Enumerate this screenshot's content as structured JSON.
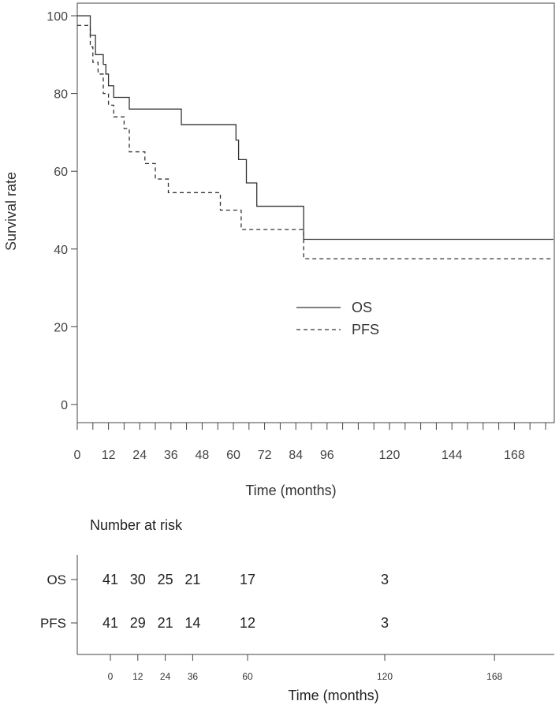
{
  "chart_data": {
    "type": "line",
    "title": "",
    "xlabel": "Time (months)",
    "ylabel": "Survival rate",
    "xlim": [
      0,
      184
    ],
    "ylim": [
      0,
      100
    ],
    "x_ticks": [
      0,
      6,
      12,
      18,
      24,
      30,
      36,
      42,
      48,
      54,
      60,
      66,
      72,
      78,
      84,
      90,
      96,
      102,
      108,
      114,
      120,
      126,
      132,
      138,
      144,
      150,
      156,
      162,
      168,
      174,
      180
    ],
    "x_tick_labels": [
      {
        "value": 0,
        "label": "0"
      },
      {
        "value": 12,
        "label": "12"
      },
      {
        "value": 24,
        "label": "24"
      },
      {
        "value": 36,
        "label": "36"
      },
      {
        "value": 48,
        "label": "48"
      },
      {
        "value": 60,
        "label": "60"
      },
      {
        "value": 72,
        "label": "72"
      },
      {
        "value": 84,
        "label": "84"
      },
      {
        "value": 96,
        "label": "96"
      },
      {
        "value": 120,
        "label": "120"
      },
      {
        "value": 144,
        "label": "144"
      },
      {
        "value": 168,
        "label": "168"
      }
    ],
    "y_ticks": [
      {
        "value": 0,
        "label": "0"
      },
      {
        "value": 20,
        "label": "20"
      },
      {
        "value": 40,
        "label": "40"
      },
      {
        "value": 60,
        "label": "60"
      },
      {
        "value": 80,
        "label": "80"
      },
      {
        "value": 100,
        "label": "100"
      }
    ],
    "legend": {
      "position": "center-right",
      "entries": [
        {
          "name": "OS",
          "style": "solid"
        },
        {
          "name": "PFS",
          "style": "dashed"
        }
      ]
    },
    "series": [
      {
        "name": "OS",
        "style": "solid",
        "color": "#333333",
        "steps": [
          [
            0,
            100
          ],
          [
            5,
            95
          ],
          [
            7,
            90
          ],
          [
            10,
            87.5
          ],
          [
            11,
            85
          ],
          [
            12,
            82
          ],
          [
            14,
            79
          ],
          [
            20,
            76
          ],
          [
            40,
            72
          ],
          [
            61,
            68
          ],
          [
            62,
            63
          ],
          [
            65,
            57
          ],
          [
            69,
            51
          ],
          [
            87,
            42.5
          ],
          [
            183,
            42.5
          ]
        ]
      },
      {
        "name": "PFS",
        "style": "dashed",
        "color": "#333333",
        "steps": [
          [
            0,
            97.5
          ],
          [
            5,
            92
          ],
          [
            6,
            88
          ],
          [
            8,
            85
          ],
          [
            10,
            80
          ],
          [
            12,
            77
          ],
          [
            14,
            74
          ],
          [
            18,
            71
          ],
          [
            20,
            65
          ],
          [
            26,
            62
          ],
          [
            30,
            58
          ],
          [
            35,
            54.5
          ],
          [
            55,
            50
          ],
          [
            63,
            45
          ],
          [
            87,
            37.5
          ],
          [
            183,
            37.5
          ]
        ]
      }
    ]
  },
  "risk_table": {
    "heading": "Number at risk",
    "x_label": "Time (months)",
    "time_points": [
      {
        "value": 0,
        "label": "0"
      },
      {
        "value": 12,
        "label": "12"
      },
      {
        "value": 24,
        "label": "24"
      },
      {
        "value": 36,
        "label": "36"
      },
      {
        "value": 60,
        "label": "60"
      },
      {
        "value": 120,
        "label": "120"
      },
      {
        "value": 168,
        "label": "168"
      }
    ],
    "rows": [
      {
        "label": "OS",
        "counts": [
          {
            "time": 0,
            "count": "41"
          },
          {
            "time": 12,
            "count": "30"
          },
          {
            "time": 24,
            "count": "25"
          },
          {
            "time": 36,
            "count": "21"
          },
          {
            "time": 60,
            "count": "17"
          },
          {
            "time": 120,
            "count": "3"
          }
        ]
      },
      {
        "label": "PFS",
        "counts": [
          {
            "time": 0,
            "count": "41"
          },
          {
            "time": 12,
            "count": "29"
          },
          {
            "time": 24,
            "count": "21"
          },
          {
            "time": 36,
            "count": "14"
          },
          {
            "time": 60,
            "count": "12"
          },
          {
            "time": 120,
            "count": "3"
          }
        ]
      }
    ]
  }
}
